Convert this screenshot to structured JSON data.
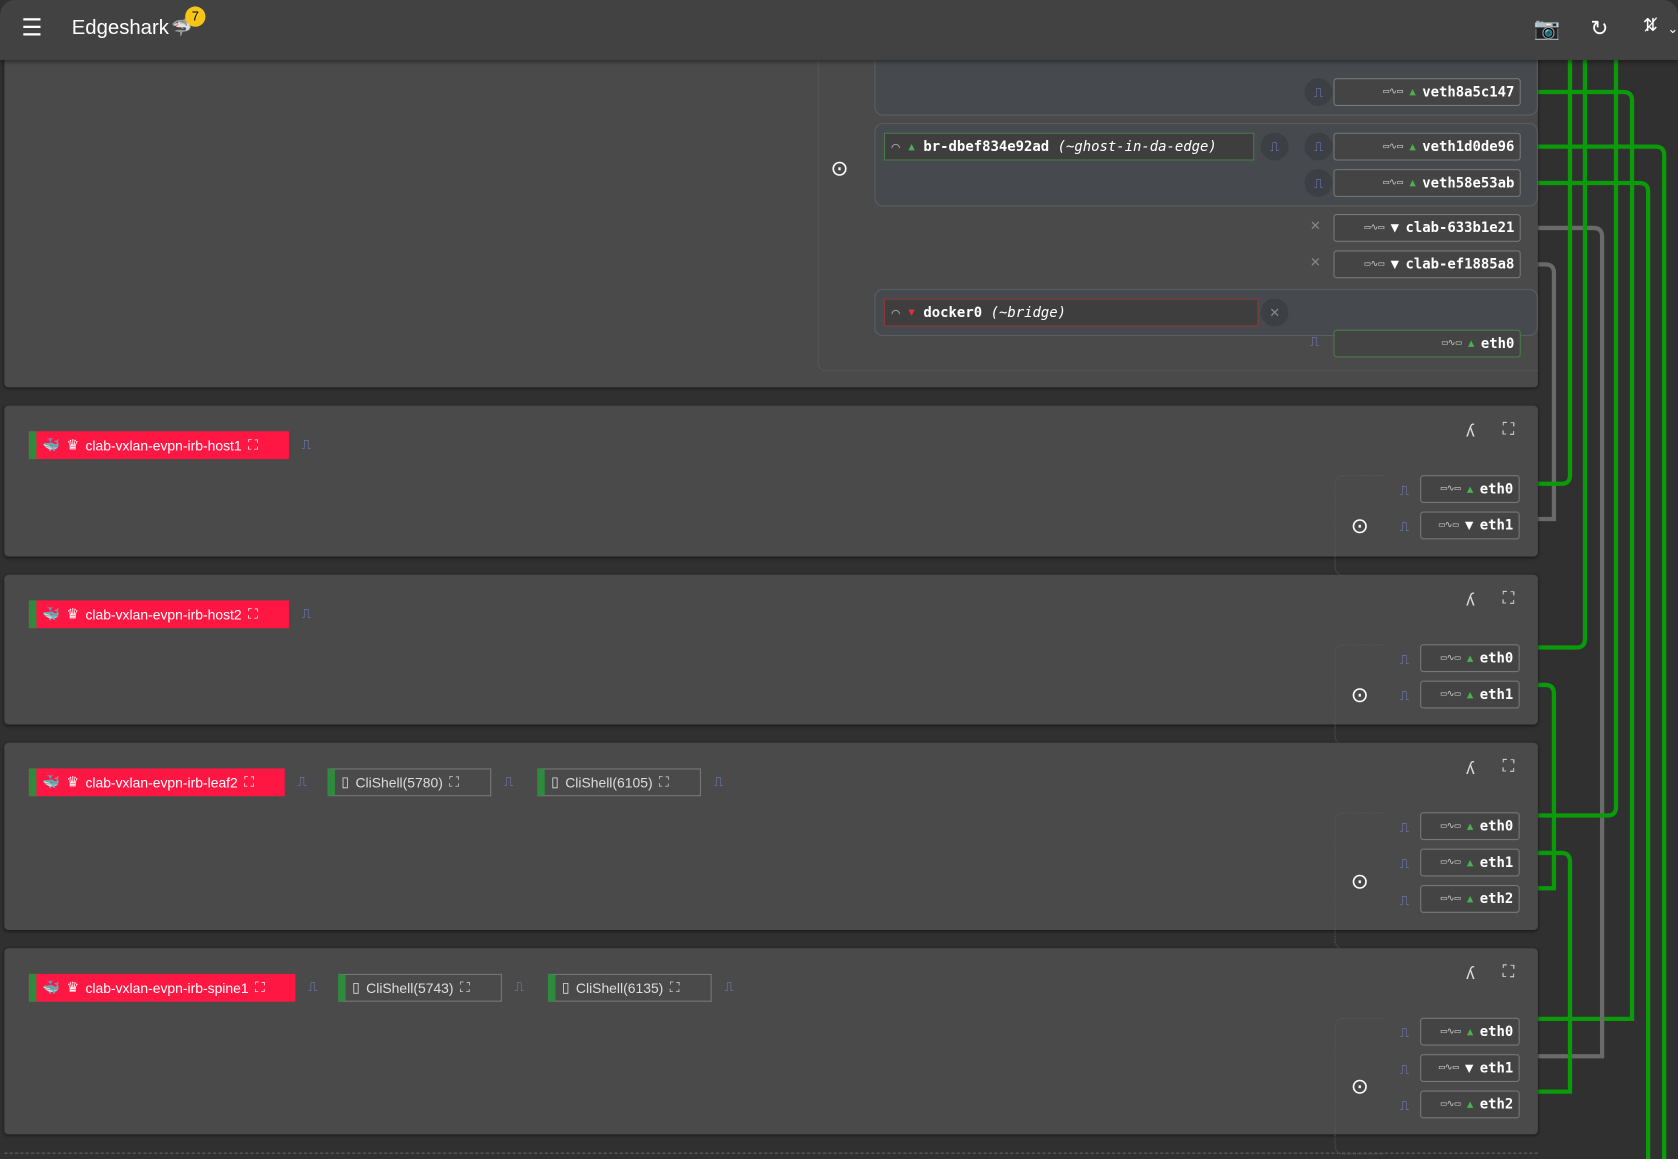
{
  "appbar": {
    "title": "Edgeshark",
    "badge": "7",
    "icons": [
      "menu-icon",
      "shark-logo",
      "camera-icon",
      "refresh-icon",
      "sync-disabled-icon",
      "chevron-down-icon"
    ]
  },
  "host": {
    "interfaces": [
      {
        "name": "veth8a5c147",
        "state": "up"
      },
      {
        "name": "veth1d0de96",
        "state": "up"
      },
      {
        "name": "veth58e53ab",
        "state": "up"
      },
      {
        "name": "clab-633b1e21",
        "state": "down"
      },
      {
        "name": "clab-ef1885a8",
        "state": "down"
      },
      {
        "name": "eth0",
        "state": "up"
      }
    ],
    "bridges": [
      {
        "name": "br-dbef834e92ad",
        "alias": "(~ghost-in-da-edge)",
        "state": "up"
      },
      {
        "name": "docker0",
        "alias": "(~bridge)",
        "state": "down"
      }
    ]
  },
  "nodes": [
    {
      "container": "clab-vxlan-evpn-irb-host1",
      "processes": [],
      "interfaces": [
        {
          "name": "eth0",
          "state": "up"
        },
        {
          "name": "eth1",
          "state": "down"
        }
      ]
    },
    {
      "container": "clab-vxlan-evpn-irb-host2",
      "processes": [],
      "interfaces": [
        {
          "name": "eth0",
          "state": "up"
        },
        {
          "name": "eth1",
          "state": "up"
        }
      ]
    },
    {
      "container": "clab-vxlan-evpn-irb-leaf2",
      "processes": [
        "CliShell(5780)",
        "CliShell(6105)"
      ],
      "interfaces": [
        {
          "name": "eth0",
          "state": "up"
        },
        {
          "name": "eth1",
          "state": "up"
        },
        {
          "name": "eth2",
          "state": "up"
        }
      ]
    },
    {
      "container": "clab-vxlan-evpn-irb-spine1",
      "processes": [
        "CliShell(5743)",
        "CliShell(6135)"
      ],
      "interfaces": [
        {
          "name": "eth0",
          "state": "up"
        },
        {
          "name": "eth1",
          "state": "down"
        },
        {
          "name": "eth2",
          "state": "up"
        }
      ]
    }
  ],
  "colors": {
    "up": "#4caf50",
    "down": "#d32f2f",
    "container": "#ff1744",
    "wire_up": "#0a9a0a",
    "wire_down": "#6a6a6a",
    "badge": "#f5c518"
  }
}
